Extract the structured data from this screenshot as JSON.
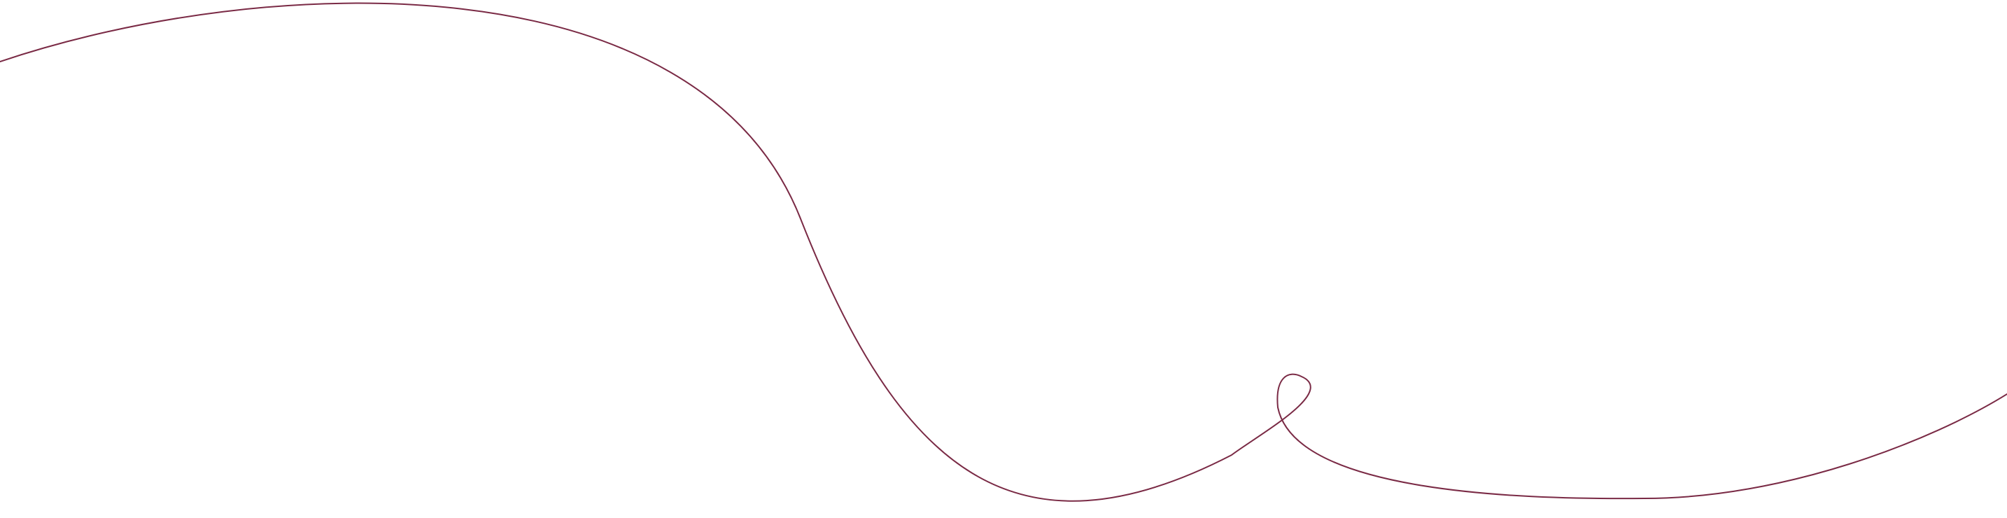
{
  "colors": {
    "background": "#ffffff",
    "line": "#7a2a45"
  },
  "decor": {
    "shape": "single continuous hand-drawn curve with one small loop",
    "icon": "squiggle-line"
  }
}
